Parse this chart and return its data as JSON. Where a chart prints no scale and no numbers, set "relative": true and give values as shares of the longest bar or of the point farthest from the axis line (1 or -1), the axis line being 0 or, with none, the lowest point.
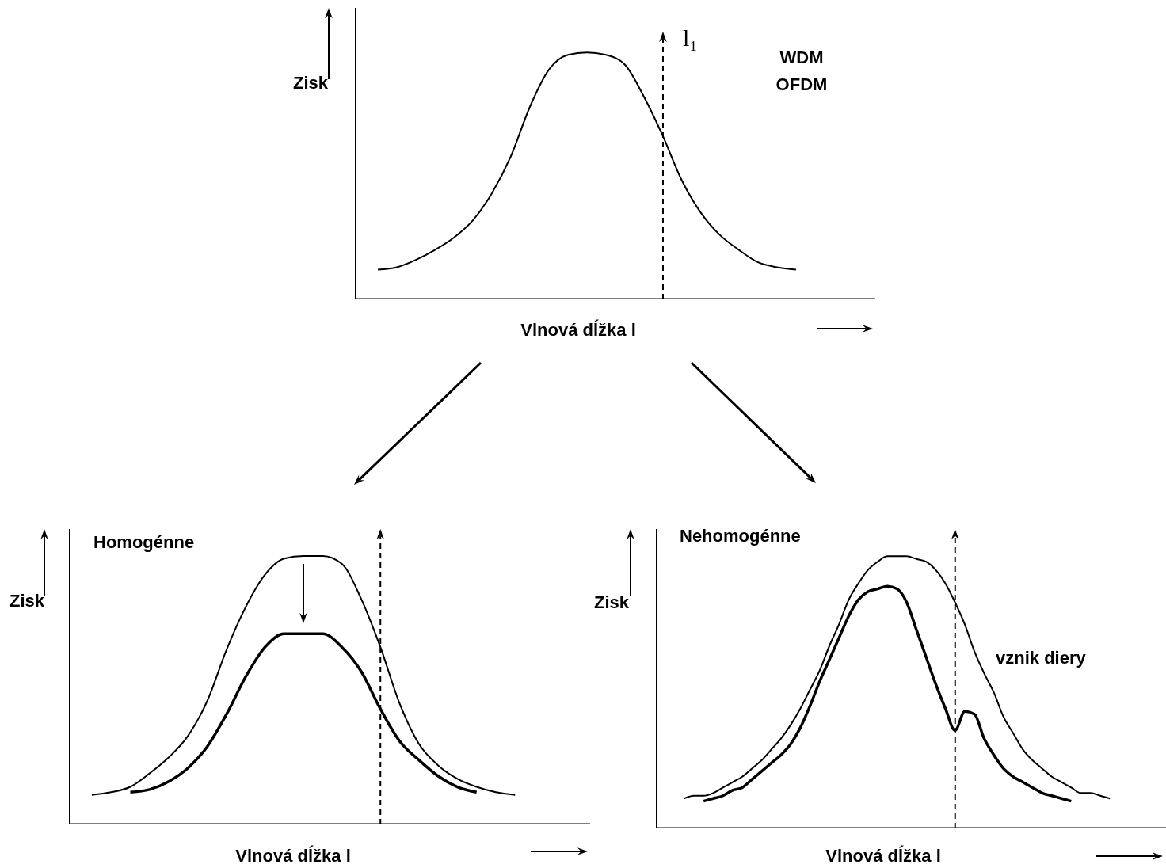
{
  "chart_data": [
    {
      "type": "line",
      "xlabel": "Vlnová dĺžka l",
      "ylabel": "Zisk",
      "annotations": [
        "l₁",
        "WDM",
        "OFDM"
      ],
      "relative": true,
      "marker": "none",
      "categories": [
        null,
        null,
        null,
        null,
        null,
        null,
        null,
        null,
        null,
        null,
        null,
        null,
        null,
        null,
        null,
        null,
        null,
        null,
        null,
        null,
        null,
        null,
        null
      ],
      "series": [
        {
          "color": "#000000",
          "values": [
            0.12,
            0.13,
            0.16,
            0.2,
            0.25,
            0.32,
            0.43,
            0.58,
            0.78,
            0.93,
            0.99,
            1,
            0.99,
            0.95,
            0.82,
            0.66,
            0.48,
            0.35,
            0.26,
            0.2,
            0.15,
            0.13,
            0.12
          ]
        }
      ]
    },
    {
      "type": "line",
      "title": "Homogénne",
      "xlabel": "Vlnová dĺžka l",
      "ylabel": "Zisk",
      "relative": true,
      "marker": "none",
      "categories": [
        null,
        null,
        null,
        null,
        null,
        null,
        null,
        null,
        null,
        null,
        null,
        null,
        null,
        null,
        null,
        null,
        null,
        null,
        null,
        null,
        null,
        null,
        null
      ],
      "series": [
        {
          "color": "#000000",
          "values": [
            0.11,
            0.12,
            0.14,
            0.19,
            0.25,
            0.33,
            0.46,
            0.65,
            0.81,
            0.93,
            0.99,
            1,
            1,
            0.97,
            0.84,
            0.66,
            0.45,
            0.3,
            0.22,
            0.17,
            0.14,
            0.12,
            0.11
          ]
        },
        {
          "color": "#000000",
          "values": [
            null,
            null,
            0.12,
            0.13,
            0.16,
            0.21,
            0.29,
            0.41,
            0.55,
            0.66,
            0.71,
            0.71,
            0.71,
            0.66,
            0.57,
            0.43,
            0.31,
            0.24,
            0.18,
            0.14,
            0.12,
            null,
            null
          ]
        }
      ]
    },
    {
      "type": "line",
      "title": "Nehomogénne",
      "xlabel": "Vlnová dĺžka l",
      "ylabel": "Zisk",
      "annotations": [
        "vznik diery"
      ],
      "relative": true,
      "marker": "none",
      "categories": [
        null,
        null,
        null,
        null,
        null,
        null,
        null,
        null,
        null,
        null,
        null,
        null,
        null,
        null,
        null,
        null,
        null,
        null,
        null,
        null,
        null,
        null,
        null,
        null,
        null,
        null,
        null,
        null,
        null,
        null,
        null,
        null,
        null,
        null,
        null,
        null,
        null,
        null,
        null,
        null,
        null,
        null,
        null,
        null,
        null
      ],
      "series": [
        {
          "color": "#000000",
          "values": [
            0.11,
            0.12,
            0.12,
            0.13,
            0.15,
            0.17,
            0.19,
            0.22,
            0.25,
            0.29,
            0.33,
            0.38,
            0.44,
            0.51,
            0.58,
            0.67,
            0.75,
            0.84,
            0.9,
            0.95,
            0.98,
            1,
            1,
            1,
            0.99,
            0.98,
            0.95,
            0.9,
            0.83,
            0.75,
            0.65,
            0.57,
            0.5,
            0.41,
            0.35,
            0.29,
            0.25,
            0.22,
            0.19,
            0.17,
            0.15,
            0.13,
            0.13,
            0.12,
            0.11
          ]
        },
        {
          "color": "#000000",
          "values": [
            null,
            null,
            0.1,
            0.11,
            0.12,
            0.14,
            0.15,
            0.18,
            0.21,
            0.24,
            0.27,
            0.31,
            0.37,
            0.45,
            0.54,
            0.62,
            0.7,
            0.78,
            0.84,
            0.87,
            0.88,
            0.89,
            0.88,
            0.83,
            0.73,
            0.63,
            0.53,
            0.44,
            0.36,
            0.43,
            0.42,
            0.33,
            0.27,
            0.22,
            0.19,
            0.17,
            0.15,
            0.13,
            0.12,
            0.11,
            0.1,
            null,
            null,
            null,
            null
          ]
        }
      ]
    }
  ]
}
